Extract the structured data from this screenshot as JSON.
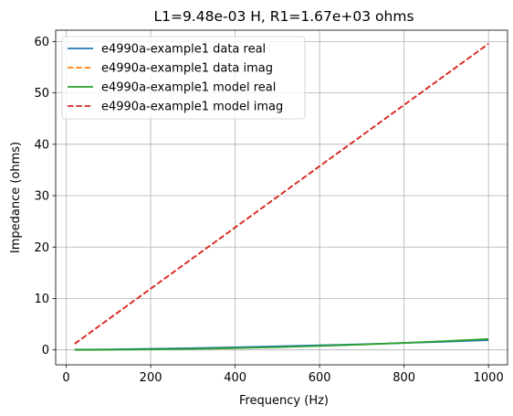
{
  "chart_data": {
    "type": "line",
    "title": "L1=9.48e-03 H, R1=1.67e+03 ohms",
    "xlabel": "Frequency (Hz)",
    "ylabel": "Impedance (ohms)",
    "xlim": [
      -25,
      1045
    ],
    "ylim": [
      -2.9,
      62.2
    ],
    "xticks": [
      0,
      200,
      400,
      600,
      800,
      1000
    ],
    "yticks": [
      0,
      10,
      20,
      30,
      40,
      50,
      60
    ],
    "grid": true,
    "legend_position": "top-left",
    "series": [
      {
        "name": "e4990a-example1 data real",
        "color": "#1f77b4",
        "dash": "solid",
        "x": [
          20,
          100,
          200,
          300,
          400,
          500,
          600,
          700,
          800,
          900,
          1000
        ],
        "y": [
          0.05,
          0.1,
          0.2,
          0.35,
          0.5,
          0.7,
          0.9,
          1.1,
          1.35,
          1.6,
          1.9
        ]
      },
      {
        "name": "e4990a-example1 data imag",
        "color": "#ff7f0e",
        "dash": "dashed",
        "x": [
          20,
          100,
          200,
          300,
          400,
          500,
          600,
          700,
          800,
          900,
          1000
        ],
        "y": [
          1.19,
          5.96,
          11.91,
          17.87,
          23.82,
          29.78,
          35.74,
          41.69,
          47.65,
          53.6,
          59.56
        ]
      },
      {
        "name": "e4990a-example1 model real",
        "color": "#2ca02c",
        "dash": "solid",
        "x": [
          20,
          100,
          200,
          300,
          400,
          500,
          600,
          700,
          800,
          900,
          1000
        ],
        "y": [
          0.001,
          0.021,
          0.085,
          0.19,
          0.34,
          0.53,
          0.77,
          1.04,
          1.36,
          1.72,
          2.12
        ]
      },
      {
        "name": "e4990a-example1 model imag",
        "color": "#d62728",
        "dash": "dashed",
        "x": [
          20,
          100,
          200,
          300,
          400,
          500,
          600,
          700,
          800,
          900,
          1000
        ],
        "y": [
          1.19,
          5.96,
          11.91,
          17.87,
          23.82,
          29.78,
          35.74,
          41.69,
          47.65,
          53.6,
          59.56
        ]
      }
    ]
  }
}
